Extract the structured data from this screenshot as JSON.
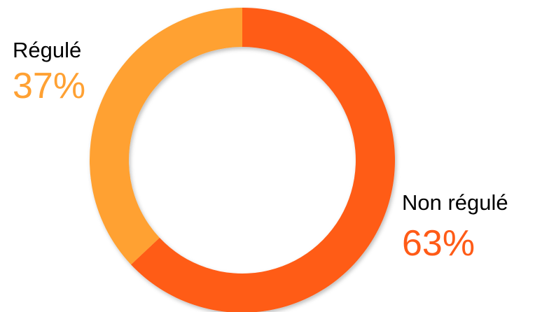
{
  "chart_data": {
    "type": "donut",
    "categories": [
      "Non régulé",
      "Régulé"
    ],
    "values": [
      63,
      37
    ],
    "value_labels": [
      "63%",
      "37%"
    ],
    "colors": [
      "#ff5b17",
      "#ffa133"
    ]
  }
}
